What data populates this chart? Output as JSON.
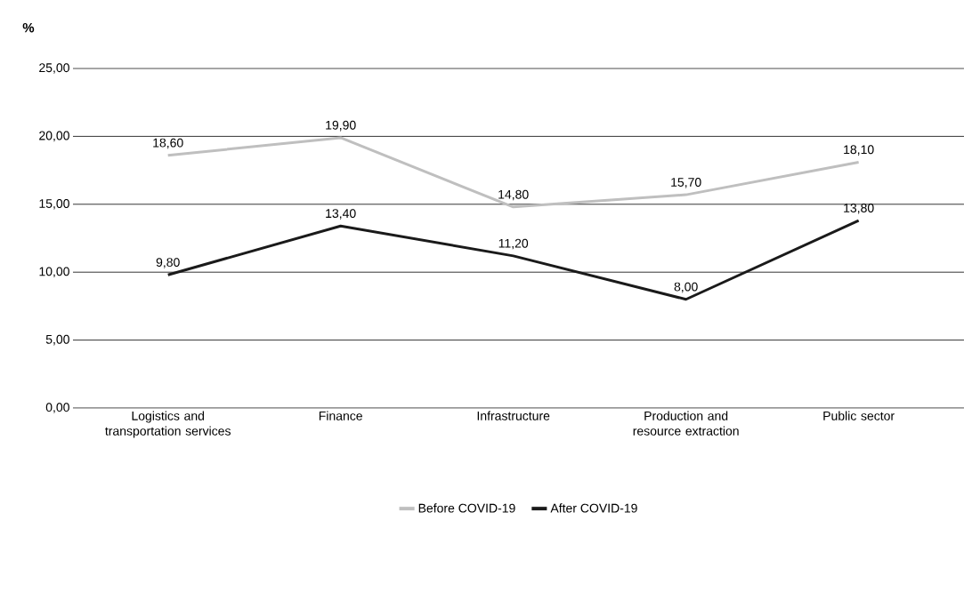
{
  "chart_data": {
    "type": "line",
    "ylabel": "%",
    "categories": [
      "Logistics and transportation services",
      "Finance",
      "Infrastructure",
      "Production and resource extraction",
      "Public sector"
    ],
    "ylim": [
      0,
      25
    ],
    "yticks": [
      {
        "value": 0,
        "label": "0,00"
      },
      {
        "value": 5,
        "label": "5,00"
      },
      {
        "value": 10,
        "label": "10,00"
      },
      {
        "value": 15,
        "label": "15,00"
      },
      {
        "value": 20,
        "label": "20,00"
      },
      {
        "value": 25,
        "label": "25,00"
      }
    ],
    "grid": "y",
    "legend": "bottom",
    "marker": "none",
    "line_style": "solid",
    "series": [
      {
        "name": "Before COVID-19",
        "color": "#bfbfbf",
        "values": [
          18.6,
          19.9,
          14.8,
          15.7,
          18.1
        ],
        "value_labels": [
          "18,60",
          "19,90",
          "14,80",
          "15,70",
          "18,10"
        ]
      },
      {
        "name": "After COVID-19",
        "color": "#1a1a1a",
        "values": [
          9.8,
          13.4,
          11.2,
          8.0,
          13.8
        ],
        "value_labels": [
          "9,80",
          "13,40",
          "11,20",
          "8,00",
          "13,80"
        ]
      }
    ]
  }
}
